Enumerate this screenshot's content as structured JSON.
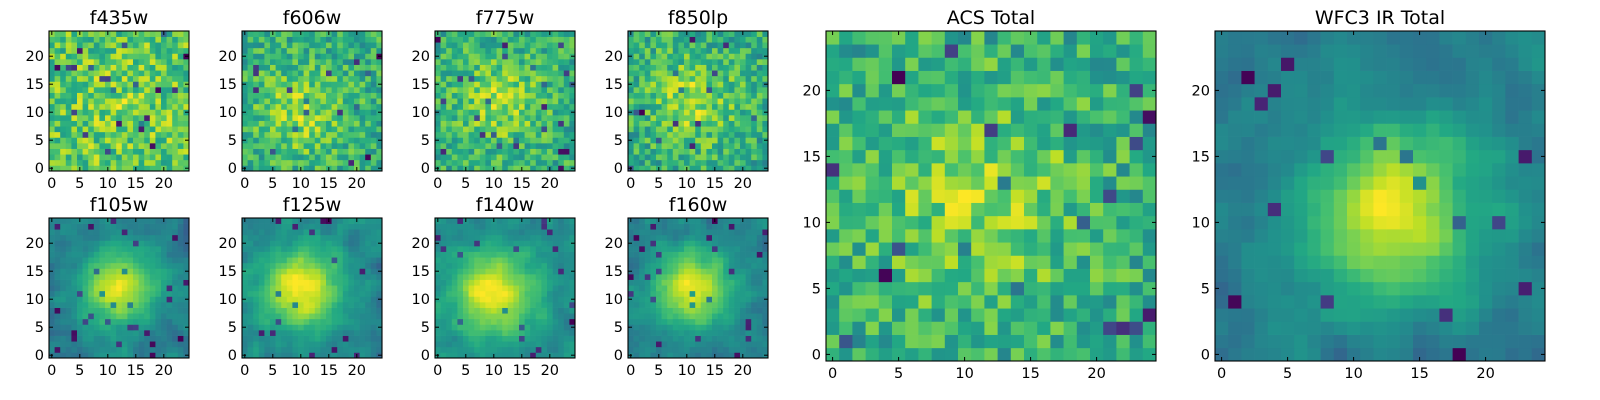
{
  "chart_data": [
    {
      "type": "heatmap",
      "id": "p1",
      "title": "f435w",
      "grid": [
        25,
        25
      ],
      "xlim": [
        -0.5,
        24.5
      ],
      "ylim": [
        -0.5,
        24.5
      ],
      "xticks": [
        0,
        5,
        10,
        15,
        20
      ],
      "yticks": [
        0,
        5,
        10,
        15,
        20
      ],
      "colormap": "viridis",
      "structure": "noise",
      "peak": [
        12,
        12
      ],
      "seed": 11
    },
    {
      "type": "heatmap",
      "id": "p2",
      "title": "f606w",
      "grid": [
        25,
        25
      ],
      "xlim": [
        -0.5,
        24.5
      ],
      "ylim": [
        -0.5,
        24.5
      ],
      "xticks": [
        0,
        5,
        10,
        15,
        20
      ],
      "yticks": [
        0,
        5,
        10,
        15,
        20
      ],
      "colormap": "viridis",
      "structure": "noise-with-center",
      "peak": [
        10,
        10
      ],
      "seed": 23
    },
    {
      "type": "heatmap",
      "id": "p3",
      "title": "f775w",
      "grid": [
        25,
        25
      ],
      "xlim": [
        -0.5,
        24.5
      ],
      "ylim": [
        -0.5,
        24.5
      ],
      "xticks": [
        0,
        5,
        10,
        15,
        20
      ],
      "yticks": [
        0,
        5,
        10,
        15,
        20
      ],
      "colormap": "viridis",
      "structure": "noise-with-center",
      "peak": [
        11,
        12
      ],
      "seed": 37
    },
    {
      "type": "heatmap",
      "id": "p4",
      "title": "f850lp",
      "grid": [
        25,
        25
      ],
      "xlim": [
        -0.5,
        24.5
      ],
      "ylim": [
        -0.5,
        24.5
      ],
      "xticks": [
        0,
        5,
        10,
        15,
        20
      ],
      "yticks": [
        0,
        5,
        10,
        15,
        20
      ],
      "colormap": "viridis",
      "structure": "noise-with-center",
      "peak": [
        11,
        12
      ],
      "seed": 41
    },
    {
      "type": "heatmap",
      "id": "p5",
      "title": "f105w",
      "grid": [
        25,
        25
      ],
      "xlim": [
        -0.5,
        24.5
      ],
      "ylim": [
        -0.5,
        24.5
      ],
      "xticks": [
        0,
        5,
        10,
        15,
        20
      ],
      "yticks": [
        0,
        5,
        10,
        15,
        20
      ],
      "colormap": "viridis",
      "structure": "smooth-blob",
      "peak": [
        12,
        12
      ],
      "seed": 53
    },
    {
      "type": "heatmap",
      "id": "p6",
      "title": "f125w",
      "grid": [
        25,
        25
      ],
      "xlim": [
        -0.5,
        24.5
      ],
      "ylim": [
        -0.5,
        24.5
      ],
      "xticks": [
        0,
        5,
        10,
        15,
        20
      ],
      "yticks": [
        0,
        5,
        10,
        15,
        20
      ],
      "colormap": "viridis",
      "structure": "smooth-blob",
      "peak": [
        10,
        12
      ],
      "seed": 61
    },
    {
      "type": "heatmap",
      "id": "p7",
      "title": "f140w",
      "grid": [
        25,
        25
      ],
      "xlim": [
        -0.5,
        24.5
      ],
      "ylim": [
        -0.5,
        24.5
      ],
      "xticks": [
        0,
        5,
        10,
        15,
        20
      ],
      "yticks": [
        0,
        5,
        10,
        15,
        20
      ],
      "colormap": "viridis",
      "structure": "smooth-blob",
      "peak": [
        10,
        11
      ],
      "seed": 73
    },
    {
      "type": "heatmap",
      "id": "p8",
      "title": "f160w",
      "grid": [
        25,
        25
      ],
      "xlim": [
        -0.5,
        24.5
      ],
      "ylim": [
        -0.5,
        24.5
      ],
      "xticks": [
        0,
        5,
        10,
        15,
        20
      ],
      "yticks": [
        0,
        5,
        10,
        15,
        20
      ],
      "colormap": "viridis",
      "structure": "smooth-blob",
      "peak": [
        11,
        12
      ],
      "seed": 89
    },
    {
      "type": "heatmap",
      "id": "p9",
      "title": "ACS Total",
      "grid": [
        25,
        25
      ],
      "xlim": [
        -0.5,
        24.5
      ],
      "ylim": [
        -0.5,
        24.5
      ],
      "xticks": [
        0,
        5,
        10,
        15,
        20
      ],
      "yticks": [
        0,
        5,
        10,
        15,
        20
      ],
      "colormap": "viridis",
      "structure": "noise-with-center",
      "peak": [
        11,
        12
      ],
      "seed": 97
    },
    {
      "type": "heatmap",
      "id": "p10",
      "title": "WFC3 IR Total",
      "grid": [
        25,
        25
      ],
      "xlim": [
        -0.5,
        24.5
      ],
      "ylim": [
        -0.5,
        24.5
      ],
      "xticks": [
        0,
        5,
        10,
        15,
        20
      ],
      "yticks": [
        0,
        5,
        10,
        15,
        20
      ],
      "colormap": "viridis",
      "structure": "smooth-blob",
      "peak": [
        13,
        11
      ],
      "seed": 101
    }
  ]
}
